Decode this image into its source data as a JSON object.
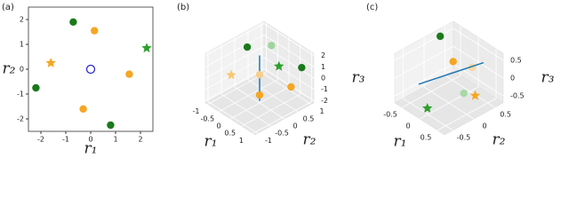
{
  "chart_data": [
    {
      "type": "scatter",
      "panel_label": "(a)",
      "xlabel": "r₁",
      "ylabel": "r₂",
      "xlim": [
        -2.5,
        2.5
      ],
      "ylim": [
        -2.5,
        2.5
      ],
      "xticks": [
        -2,
        -1,
        0,
        1,
        2
      ],
      "yticks": [
        -2,
        -1,
        0,
        1,
        2
      ],
      "series": [
        {
          "color": "#1a7a1a",
          "marker": "o",
          "x": [
            -0.7,
            -2.2,
            0.8
          ],
          "y": [
            1.9,
            -0.75,
            -2.25
          ]
        },
        {
          "color": "#2ca02c",
          "marker": "*",
          "x": [
            2.25
          ],
          "y": [
            0.85
          ]
        },
        {
          "color": "#f5a623",
          "marker": "o",
          "x": [
            0.15,
            1.55,
            -0.3
          ],
          "y": [
            1.55,
            -0.2,
            -1.6
          ]
        },
        {
          "color": "#f5a623",
          "marker": "*",
          "x": [
            -1.6
          ],
          "y": [
            0.25
          ]
        },
        {
          "color": "#1f1fd0",
          "marker": "open",
          "x": [
            0
          ],
          "y": [
            0
          ]
        }
      ]
    },
    {
      "type": "scatter3d",
      "panel_label": "(b)",
      "xlabel": "r₁",
      "ylabel": "r₂",
      "zlabel": "r₃",
      "xlim": [
        -1.1,
        1.1
      ],
      "ylim": [
        -1.1,
        1.1
      ],
      "zlim": [
        -2.2,
        2.2
      ],
      "xticks": [
        -1.0,
        -0.5,
        0.0,
        0.5,
        1.0
      ],
      "yticks": [
        -1.0,
        -0.5,
        0.0,
        0.5,
        1.0
      ],
      "zticks": [
        -2,
        -1,
        0,
        1,
        2
      ],
      "series": [
        {
          "color": "#1a7a1a",
          "marker": "o",
          "x": [
            -0.9,
            0.8
          ],
          "y": [
            0.3,
            0.9
          ],
          "z": [
            1.2,
            0.8
          ]
        },
        {
          "color": "#9fd49f",
          "marker": "o",
          "x": [
            -0.3
          ],
          "y": [
            0.7
          ],
          "z": [
            1.6
          ]
        },
        {
          "color": "#2ca02c",
          "marker": "*",
          "x": [
            0.5
          ],
          "y": [
            0.3
          ],
          "z": [
            1.3
          ]
        },
        {
          "color": "#1f77b4",
          "marker": "line",
          "x": [
            0,
            0
          ],
          "y": [
            0,
            0
          ],
          "z": [
            -2,
            2
          ]
        },
        {
          "color": "#f5a623",
          "marker": "o",
          "x": [
            0.8,
            0.0
          ],
          "y": [
            0.5,
            0.0
          ],
          "z": [
            -0.4,
            -1.5
          ]
        },
        {
          "color": "#f8cf8a",
          "marker": "o",
          "x": [
            0.0
          ],
          "y": [
            0.0
          ],
          "z": [
            0.3
          ]
        },
        {
          "color": "#f8c870",
          "marker": "*",
          "x": [
            -0.9
          ],
          "y": [
            -0.3
          ],
          "z": [
            -0.5
          ]
        }
      ]
    },
    {
      "type": "scatter3d",
      "panel_label": "(c)",
      "xlabel": "r₁",
      "ylabel": "r₂",
      "zlabel": "r₃",
      "xlim": [
        -0.7,
        0.7
      ],
      "ylim": [
        -0.7,
        0.7
      ],
      "zlim": [
        -0.7,
        0.7
      ],
      "xticks": [
        -0.5,
        0.0,
        0.5
      ],
      "yticks": [
        -0.5,
        0.0,
        0.5
      ],
      "zticks": [
        -0.5,
        0.0,
        0.5
      ],
      "series": [
        {
          "color": "#1a7a1a",
          "marker": "o",
          "x": [
            -0.6
          ],
          "y": [
            0.3
          ],
          "z": [
            0.6
          ]
        },
        {
          "color": "#f5a623",
          "marker": "o",
          "x": [
            0.0
          ],
          "y": [
            0.1
          ],
          "z": [
            0.4
          ]
        },
        {
          "color": "#f8d9a0",
          "marker": "o",
          "x": [
            0.3
          ],
          "y": [
            0.3
          ],
          "z": [
            0.3
          ]
        },
        {
          "color": "#1f77b4",
          "marker": "line",
          "x": [
            -0.5,
            0.5
          ],
          "y": [
            -0.3,
            0.4
          ],
          "z": [
            -0.3,
            0.5
          ]
        },
        {
          "color": "#a8d8a8",
          "marker": "o",
          "x": [
            0.3
          ],
          "y": [
            0.1
          ],
          "z": [
            -0.3
          ]
        },
        {
          "color": "#f5a623",
          "marker": "*",
          "x": [
            0.5
          ],
          "y": [
            0.2
          ],
          "z": [
            -0.3
          ]
        },
        {
          "color": "#2ca02c",
          "marker": "*",
          "x": [
            0.1
          ],
          "y": [
            -0.6
          ],
          "z": [
            -0.4
          ]
        }
      ]
    }
  ]
}
